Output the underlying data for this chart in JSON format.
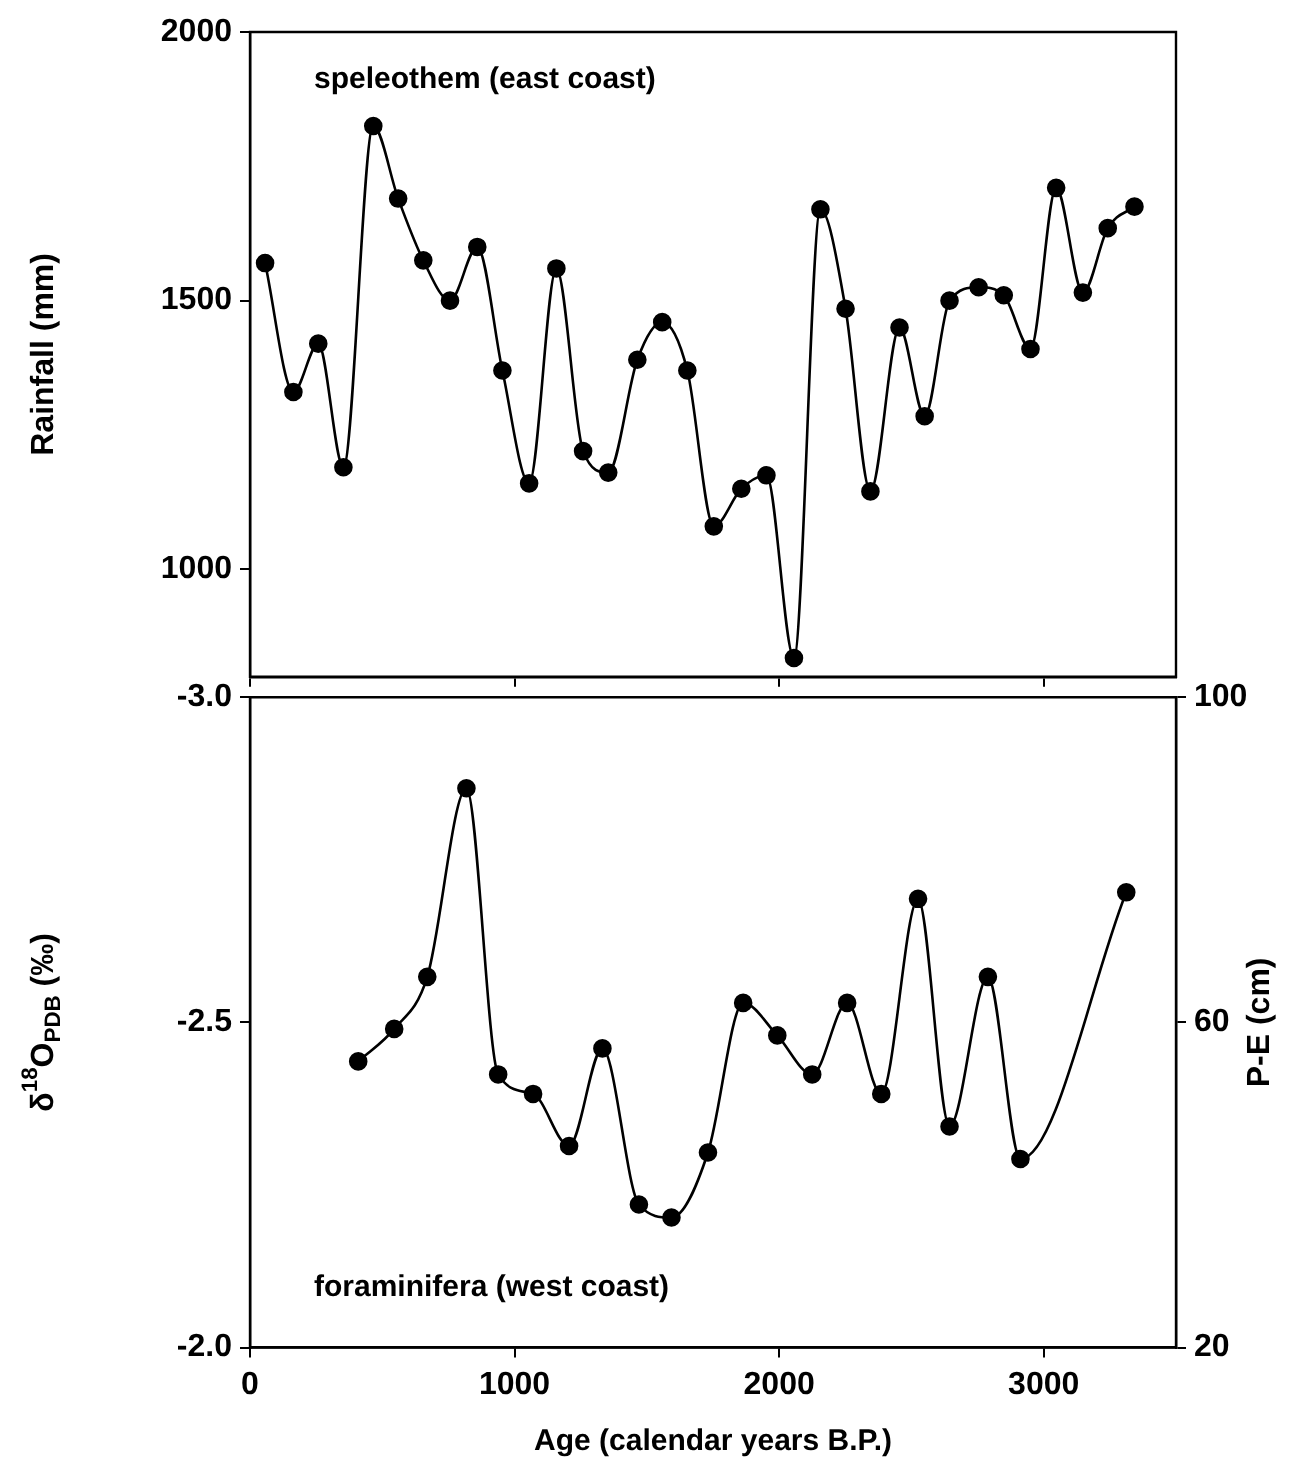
{
  "chart_data": [
    {
      "type": "line",
      "ylabel": "Rainfall (mm)",
      "annotations": [
        "speleothem (east coast)"
      ],
      "xlim": [
        0,
        3500
      ],
      "xticks": [
        0,
        1000,
        2000,
        3000
      ],
      "ylim": [
        800,
        2000
      ],
      "yticks": [
        1000,
        1500,
        2000
      ],
      "tick_labels": "y",
      "grid": false,
      "marker": "circle",
      "line_style": "solid",
      "series": [
        {
          "color": "#000000",
          "x": [
            57,
            164,
            258,
            353,
            466,
            560,
            655,
            756,
            859,
            954,
            1055,
            1158,
            1259,
            1354,
            1464,
            1558,
            1653,
            1753,
            1857,
            1952,
            2056,
            2156,
            2251,
            2345,
            2455,
            2550,
            2644,
            2754,
            2849,
            2950,
            3047,
            3148,
            3242,
            3343
          ],
          "values": [
            1570,
            1330,
            1420,
            1190,
            1825,
            1690,
            1575,
            1500,
            1600,
            1370,
            1160,
            1560,
            1220,
            1180,
            1390,
            1460,
            1370,
            1080,
            1150,
            1175,
            835,
            1670,
            1485,
            1145,
            1450,
            1285,
            1500,
            1525,
            1510,
            1410,
            1710,
            1515,
            1635,
            1675
          ]
        }
      ]
    },
    {
      "type": "line",
      "xlabel": "Age (calendar years B.P.)",
      "ylabel": "δ$^{18}$O$_{PDB}$ (‰)",
      "y2label": "P-E (cm)",
      "annotations": [
        "foraminifera (west coast)"
      ],
      "xlim": [
        0,
        3500
      ],
      "xticks": [
        0,
        1000,
        2000,
        3000
      ],
      "ylim": [
        -2.0,
        -3.0
      ],
      "yticks": [
        {
          "value": -3.0,
          "label": "-3.0"
        },
        {
          "value": -2.5,
          "label": "-2.5"
        },
        {
          "value": -2.0,
          "label": "-2.0"
        }
      ],
      "y2lim": [
        20,
        100
      ],
      "y2ticks": [
        20,
        60,
        100
      ],
      "grid": false,
      "marker": "circle",
      "line_style": "solid",
      "series": [
        {
          "color": "#000000",
          "x": [
            409,
            545,
            670,
            818,
            938,
            1070,
            1206,
            1332,
            1470,
            1593,
            1731,
            1864,
            1993,
            2125,
            2257,
            2386,
            2525,
            2644,
            2789,
            2912,
            3312
          ],
          "values": [
            -2.44,
            -2.49,
            -2.57,
            -2.86,
            -2.42,
            -2.39,
            -2.31,
            -2.46,
            -2.22,
            -2.2,
            -2.3,
            -2.53,
            -2.48,
            -2.42,
            -2.53,
            -2.39,
            -2.69,
            -2.34,
            -2.57,
            -2.29,
            -2.7
          ]
        }
      ]
    }
  ]
}
